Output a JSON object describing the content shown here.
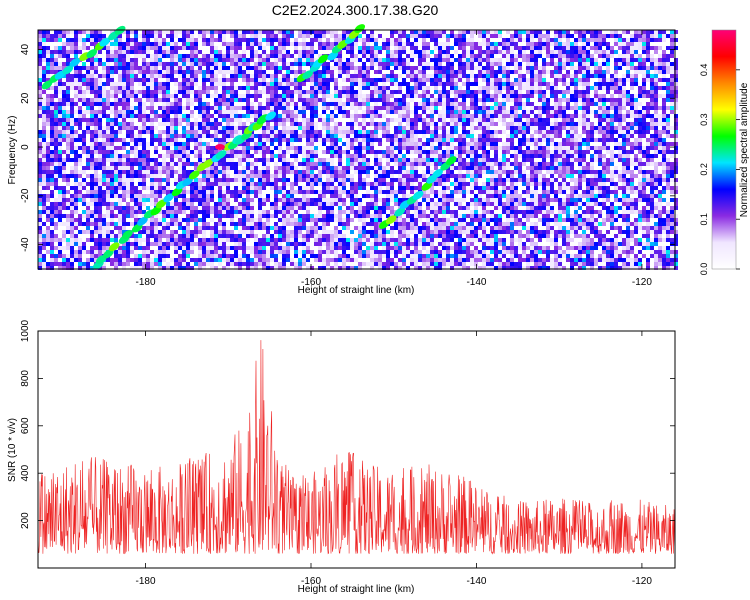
{
  "title": "C2E2.2024.300.17.38.G20",
  "chart_data": [
    {
      "type": "heatmap",
      "xlabel": "Height of straight line (km)",
      "ylabel": "Frequency (Hz)",
      "xlim": [
        -193,
        -116
      ],
      "ylim": [
        -50,
        48
      ],
      "xticks": [
        -180,
        -160,
        -140,
        -120
      ],
      "yticks": [
        -40,
        -20,
        0,
        20,
        40
      ],
      "grid": false,
      "colorbar": {
        "label": "Normalized spectral amplitude",
        "range": [
          0,
          0.48
        ],
        "ticks": [
          0.0,
          0.1,
          0.2,
          0.3,
          0.4
        ],
        "colormap": [
          "#ffffff",
          "#f0e6ff",
          "#8a2be2",
          "#0000ff",
          "#00e5ff",
          "#00ff00",
          "#ffff00",
          "#ff8800",
          "#ff0000",
          "#ff0077"
        ]
      },
      "ridges": [
        {
          "x": [
            -186,
            -178,
            -170,
            -165
          ],
          "y": [
            -48,
            -23,
            0,
            13
          ]
        },
        {
          "x": [
            -192,
            -183
          ],
          "y": [
            25,
            48
          ]
        },
        {
          "x": [
            -161,
            -154
          ],
          "y": [
            28,
            48
          ]
        },
        {
          "x": [
            -151,
            -143
          ],
          "y": [
            -32,
            -6
          ]
        }
      ],
      "peak": {
        "x": -171,
        "y": 0,
        "value": 0.47
      }
    },
    {
      "type": "line",
      "xlabel": "Height of straight line (km)",
      "ylabel": "SNR (10 * v/v)",
      "xlim": [
        -193,
        -116
      ],
      "ylim": [
        0,
        1000
      ],
      "xticks": [
        -180,
        -160,
        -140,
        -120
      ],
      "yticks": [
        200,
        400,
        600,
        800,
        1000
      ],
      "grid": false,
      "series": [
        {
          "color": "#ee2222",
          "envelope_x": [
            -193,
            -188,
            -183,
            -178,
            -173,
            -170,
            -168,
            -166,
            -164,
            -162,
            -158,
            -156,
            -153,
            -150,
            -146,
            -142,
            -138,
            -134,
            -130,
            -126,
            -122,
            -116
          ],
          "envelope_y": [
            420,
            480,
            450,
            430,
            480,
            550,
            620,
            1000,
            500,
            380,
            430,
            520,
            440,
            420,
            440,
            400,
            320,
            280,
            300,
            280,
            300,
            260
          ]
        }
      ]
    }
  ]
}
